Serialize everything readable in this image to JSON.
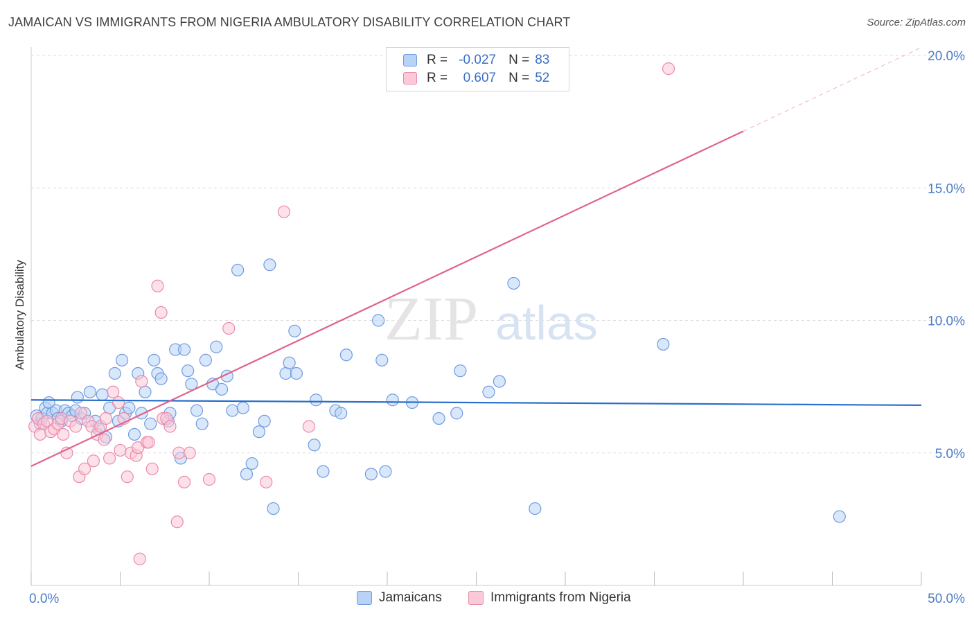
{
  "title": "JAMAICAN VS IMMIGRANTS FROM NIGERIA AMBULATORY DISABILITY CORRELATION CHART",
  "source": "Source: ZipAtlas.com",
  "legend": {
    "r_label": "R =",
    "n_label": "N =",
    "series": [
      {
        "name": "Jamaicans",
        "r": "-0.027",
        "n": "83",
        "fill": "#b8d3f5",
        "stroke": "#6f9be0"
      },
      {
        "name": "Immigrants from Nigeria",
        "r": "0.607",
        "n": "52",
        "fill": "#fbc9d7",
        "stroke": "#ea8aaa"
      }
    ]
  },
  "watermark": {
    "zip": "ZIP",
    "atlas": "atlas"
  },
  "chart_data": {
    "type": "scatter",
    "title": "JAMAICAN VS IMMIGRANTS FROM NIGERIA AMBULATORY DISABILITY CORRELATION CHART",
    "xlabel": "",
    "ylabel": "Ambulatory Disability",
    "xlim": [
      0,
      50
    ],
    "ylim": [
      0,
      20
    ],
    "x_tick_labels": [
      {
        "value": 0,
        "label": "0.0%"
      },
      {
        "value": 50,
        "label": "50.0%"
      }
    ],
    "y_tick_labels": [
      {
        "value": 5,
        "label": "5.0%"
      },
      {
        "value": 10,
        "label": "10.0%"
      },
      {
        "value": 15,
        "label": "15.0%"
      },
      {
        "value": 20,
        "label": "20.0%"
      }
    ],
    "x_ticks": [
      0,
      5,
      10,
      15,
      20,
      25,
      30,
      35,
      40,
      45,
      50
    ],
    "grid": true,
    "series": [
      {
        "name": "Jamaicans",
        "color": "#6f9be0",
        "fill": "#b8d3f5",
        "trend_color": "#2a6fc9",
        "trend": {
          "x0": 0,
          "y0": 7.0,
          "x1": 50,
          "y1": 6.8,
          "solid_to": 50
        },
        "points": [
          [
            0.3,
            6.4
          ],
          [
            0.5,
            6.1
          ],
          [
            0.6,
            6.3
          ],
          [
            0.8,
            6.7
          ],
          [
            0.9,
            6.5
          ],
          [
            1.0,
            6.9
          ],
          [
            1.2,
            6.5
          ],
          [
            1.4,
            6.6
          ],
          [
            1.5,
            6.3
          ],
          [
            1.7,
            6.2
          ],
          [
            1.9,
            6.6
          ],
          [
            2.1,
            6.5
          ],
          [
            2.3,
            6.4
          ],
          [
            2.5,
            6.6
          ],
          [
            2.6,
            7.1
          ],
          [
            2.8,
            6.3
          ],
          [
            3.0,
            6.5
          ],
          [
            3.3,
            7.3
          ],
          [
            3.6,
            6.2
          ],
          [
            3.8,
            5.9
          ],
          [
            4.0,
            7.2
          ],
          [
            4.2,
            5.6
          ],
          [
            4.4,
            6.7
          ],
          [
            4.7,
            8.0
          ],
          [
            4.9,
            6.2
          ],
          [
            5.1,
            8.5
          ],
          [
            5.3,
            6.5
          ],
          [
            5.5,
            6.7
          ],
          [
            5.8,
            5.7
          ],
          [
            6.0,
            8.0
          ],
          [
            6.2,
            6.5
          ],
          [
            6.4,
            7.3
          ],
          [
            6.7,
            6.1
          ],
          [
            6.9,
            8.5
          ],
          [
            7.1,
            8.0
          ],
          [
            7.3,
            7.8
          ],
          [
            7.7,
            6.2
          ],
          [
            7.8,
            6.5
          ],
          [
            8.1,
            8.9
          ],
          [
            8.4,
            4.8
          ],
          [
            8.6,
            8.9
          ],
          [
            8.8,
            8.1
          ],
          [
            9.0,
            7.6
          ],
          [
            9.3,
            6.6
          ],
          [
            9.6,
            6.1
          ],
          [
            9.8,
            8.5
          ],
          [
            10.2,
            7.6
          ],
          [
            10.4,
            9.0
          ],
          [
            10.7,
            7.4
          ],
          [
            11.0,
            7.9
          ],
          [
            11.3,
            6.6
          ],
          [
            11.6,
            11.9
          ],
          [
            11.9,
            6.7
          ],
          [
            12.1,
            4.2
          ],
          [
            12.4,
            4.6
          ],
          [
            12.8,
            5.8
          ],
          [
            13.1,
            6.2
          ],
          [
            13.4,
            12.1
          ],
          [
            13.6,
            2.9
          ],
          [
            14.3,
            8.0
          ],
          [
            14.5,
            8.4
          ],
          [
            14.8,
            9.6
          ],
          [
            14.9,
            8.0
          ],
          [
            15.9,
            5.3
          ],
          [
            16.0,
            7.0
          ],
          [
            16.4,
            4.3
          ],
          [
            17.1,
            6.6
          ],
          [
            17.4,
            6.5
          ],
          [
            17.7,
            8.7
          ],
          [
            19.1,
            4.2
          ],
          [
            19.5,
            10.0
          ],
          [
            19.7,
            8.5
          ],
          [
            19.9,
            4.3
          ],
          [
            20.3,
            7.0
          ],
          [
            21.4,
            6.9
          ],
          [
            22.9,
            6.3
          ],
          [
            23.9,
            6.5
          ],
          [
            24.1,
            8.1
          ],
          [
            25.7,
            7.3
          ],
          [
            26.3,
            7.7
          ],
          [
            27.1,
            11.4
          ],
          [
            28.3,
            2.9
          ],
          [
            35.5,
            9.1
          ],
          [
            45.4,
            2.6
          ]
        ]
      },
      {
        "name": "Immigrants from Nigeria",
        "color": "#ea8aaa",
        "fill": "#fbc9d7",
        "trend_color": "#e0628c",
        "trend": {
          "x0": 0,
          "y0": 4.5,
          "x1": 50,
          "y1": 20.3,
          "solid_to": 40
        },
        "points": [
          [
            0.2,
            6.0
          ],
          [
            0.4,
            6.3
          ],
          [
            0.5,
            5.7
          ],
          [
            0.7,
            6.1
          ],
          [
            0.9,
            6.2
          ],
          [
            1.1,
            5.8
          ],
          [
            1.3,
            5.9
          ],
          [
            1.5,
            6.1
          ],
          [
            1.7,
            6.3
          ],
          [
            1.8,
            5.7
          ],
          [
            2.0,
            5.0
          ],
          [
            2.2,
            6.2
          ],
          [
            2.5,
            6.0
          ],
          [
            2.7,
            4.1
          ],
          [
            2.8,
            6.5
          ],
          [
            3.0,
            4.4
          ],
          [
            3.2,
            6.2
          ],
          [
            3.4,
            6.0
          ],
          [
            3.5,
            4.7
          ],
          [
            3.7,
            5.7
          ],
          [
            3.9,
            6.0
          ],
          [
            4.1,
            5.5
          ],
          [
            4.2,
            6.3
          ],
          [
            4.4,
            4.8
          ],
          [
            4.6,
            7.3
          ],
          [
            4.9,
            6.9
          ],
          [
            5.0,
            5.1
          ],
          [
            5.2,
            6.3
          ],
          [
            5.4,
            4.1
          ],
          [
            5.6,
            5.0
          ],
          [
            5.9,
            4.9
          ],
          [
            6.0,
            5.2
          ],
          [
            6.1,
            1.0
          ],
          [
            6.2,
            7.7
          ],
          [
            6.5,
            5.4
          ],
          [
            6.6,
            5.4
          ],
          [
            6.8,
            4.4
          ],
          [
            7.1,
            11.3
          ],
          [
            7.3,
            10.3
          ],
          [
            7.4,
            6.3
          ],
          [
            7.6,
            6.3
          ],
          [
            7.8,
            6.0
          ],
          [
            8.2,
            2.4
          ],
          [
            8.3,
            5.0
          ],
          [
            8.6,
            3.9
          ],
          [
            8.9,
            5.0
          ],
          [
            10.0,
            4.0
          ],
          [
            11.1,
            9.7
          ],
          [
            13.2,
            3.9
          ],
          [
            14.2,
            14.1
          ],
          [
            15.6,
            6.0
          ],
          [
            35.8,
            19.5
          ]
        ]
      }
    ]
  }
}
